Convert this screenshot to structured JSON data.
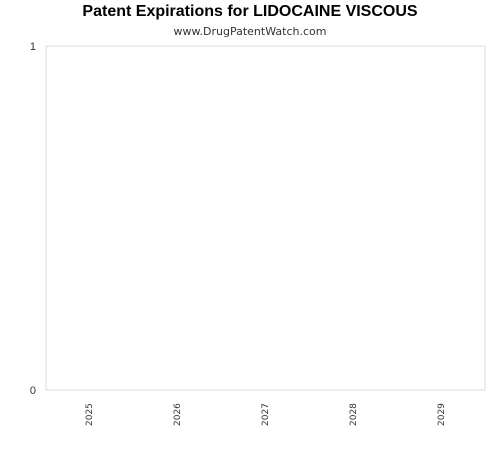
{
  "chart_data": {
    "type": "bar",
    "title": "Patent Expirations for LIDOCAINE VISCOUS",
    "subtitle": "www.DrugPatentWatch.com",
    "categories": [
      "2025",
      "2026",
      "2027",
      "2028",
      "2029"
    ],
    "values": [
      0,
      0,
      0,
      0,
      0
    ],
    "xlabel": "",
    "ylabel": "",
    "ylim": [
      0,
      1
    ],
    "yticks": [
      "0",
      "1"
    ],
    "grid": false,
    "legend": "none",
    "colors": {
      "plot_border": "#dddddd",
      "text": "#333333",
      "title": "#000000",
      "bar": "#4a7ebb"
    }
  }
}
